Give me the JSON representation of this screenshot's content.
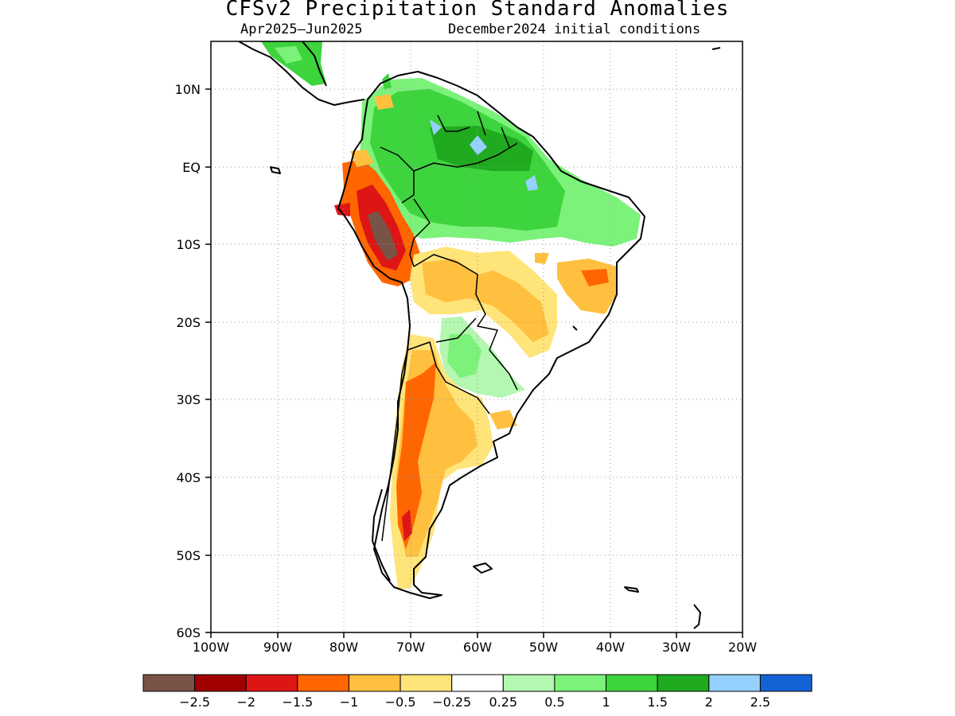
{
  "title": "CFSv2 Precipitation Standard Anomalies",
  "subtitle_left": "Apr2025–Jun2025",
  "subtitle_right": "December2024 initial conditions",
  "axes": {
    "lat_labels": [
      "10N",
      "EQ",
      "10S",
      "20S",
      "30S",
      "40S",
      "50S",
      "60S"
    ],
    "lon_labels": [
      "100W",
      "90W",
      "80W",
      "70W",
      "60W",
      "50W",
      "40W",
      "30W",
      "20W"
    ]
  },
  "colorbar": {
    "colors": [
      "#7a5347",
      "#a00000",
      "#dd1515",
      "#ff6600",
      "#ffc040",
      "#ffe47a",
      "#ffffff",
      "#b3f7b0",
      "#7cf27a",
      "#3dd43d",
      "#1faa1f",
      "#96d0ff",
      "#1463d6"
    ],
    "labels": [
      "−2.5",
      "−2",
      "−1.5",
      "−1",
      "−0.5",
      "−0.25",
      "0.25",
      "0.5",
      "1",
      "1.5",
      "2",
      "2.5"
    ]
  }
}
